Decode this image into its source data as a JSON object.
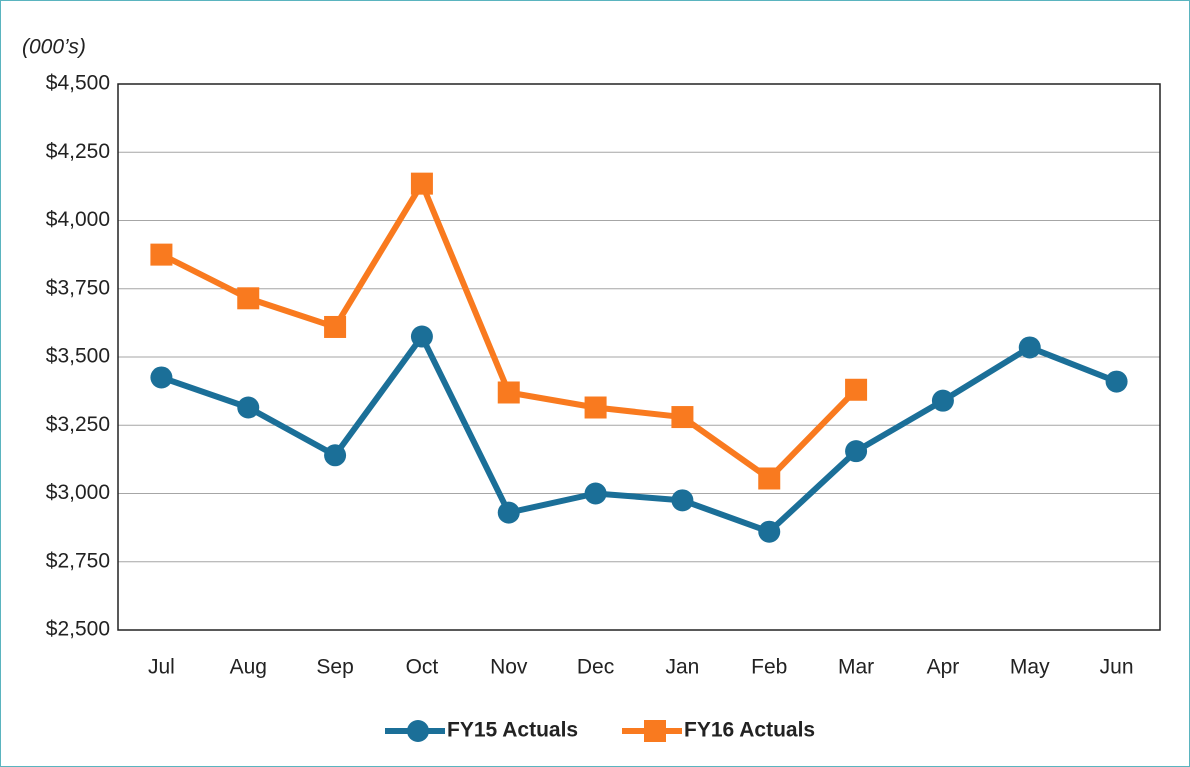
{
  "chart_data": {
    "type": "line",
    "y_label": "(000’s)",
    "categories": [
      "Jul",
      "Aug",
      "Sep",
      "Oct",
      "Nov",
      "Dec",
      "Jan",
      "Feb",
      "Mar",
      "Apr",
      "May",
      "Jun"
    ],
    "series": [
      {
        "name": "FY15 Actuals",
        "color": "#1b6f98",
        "marker": "circle",
        "values": [
          3425,
          3315,
          3140,
          3575,
          2930,
          3000,
          2975,
          2860,
          3155,
          3340,
          3535,
          3410
        ]
      },
      {
        "name": "FY16 Actuals",
        "color": "#f97a1f",
        "marker": "square",
        "values": [
          3875,
          3715,
          3610,
          4135,
          3370,
          3315,
          3280,
          3055,
          3380,
          null,
          null,
          null
        ]
      }
    ],
    "ylim": [
      2500,
      4500
    ],
    "yticks": [
      {
        "value": 2500,
        "label": "$2,500"
      },
      {
        "value": 2750,
        "label": "$2,750"
      },
      {
        "value": 3000,
        "label": "$3,000"
      },
      {
        "value": 3250,
        "label": "$3,250"
      },
      {
        "value": 3500,
        "label": "$3,500"
      },
      {
        "value": 3750,
        "label": "$3,750"
      },
      {
        "value": 4000,
        "label": "$4,000"
      },
      {
        "value": 4250,
        "label": "$4,250"
      },
      {
        "value": 4500,
        "label": "$4,500"
      }
    ],
    "grid": true,
    "legend": "bottom"
  }
}
